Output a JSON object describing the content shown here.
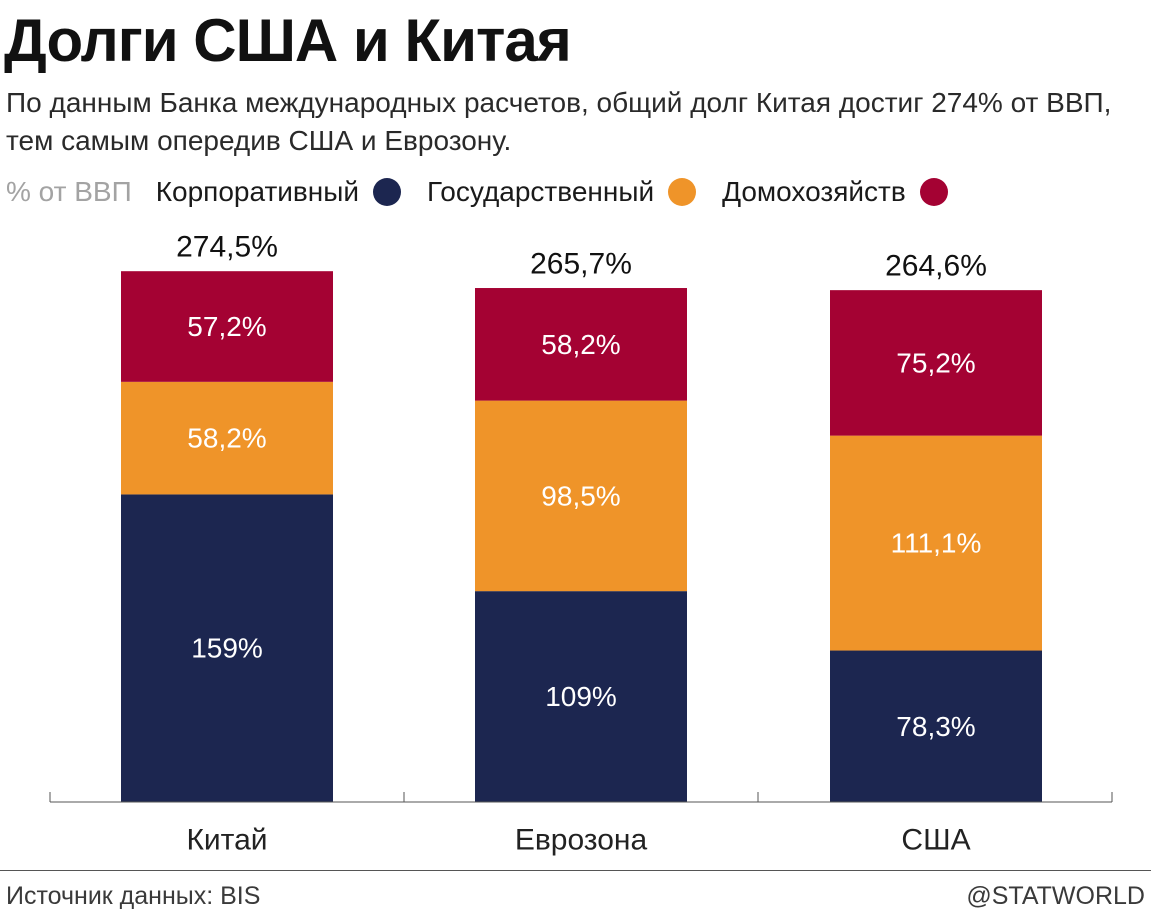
{
  "title": "Долги США и Китая",
  "subtitle": "По данным Банка международных расчетов, общий долг Китая достиг 274% от ВВП, тем самым опередив США и Еврозону.",
  "legend_unit": "% от ВВП",
  "colors": {
    "corporate": "#1c2650",
    "government": "#ef9429",
    "household": "#a40233",
    "axis": "#555555",
    "segment_label": "#ffffff",
    "total_label": "#111111"
  },
  "chart_data": {
    "type": "bar",
    "stacked": true,
    "unit": "% от ВВП",
    "categories": [
      "Китай",
      "Еврозона",
      "США"
    ],
    "series": [
      {
        "name": "Корпоративный",
        "key": "corporate",
        "values": [
          159,
          109,
          78.3
        ],
        "labels": [
          "159%",
          "109%",
          "78,3%"
        ]
      },
      {
        "name": "Государственный",
        "key": "government",
        "values": [
          58.2,
          98.5,
          111.1
        ],
        "labels": [
          "58,2%",
          "98,5%",
          "111,1%"
        ]
      },
      {
        "name": "Домохозяйств",
        "key": "household",
        "values": [
          57.2,
          58.2,
          75.2
        ],
        "labels": [
          "57,2%",
          "58,2%",
          "75,2%"
        ]
      }
    ],
    "totals": [
      274.5,
      265.7,
      264.6
    ],
    "total_labels": [
      "274,5%",
      "265,7%",
      "264,6%"
    ],
    "ylim": [
      0,
      274.5
    ]
  },
  "footer": {
    "source": "Источник данных: BIS",
    "credit": "@STATWORLD"
  }
}
